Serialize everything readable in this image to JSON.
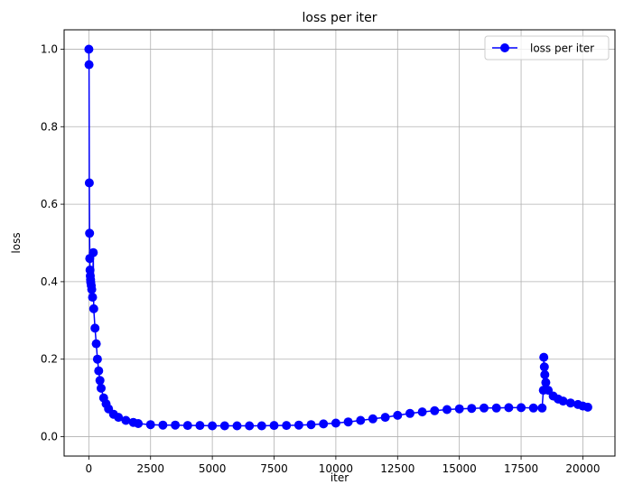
{
  "chart_data": {
    "type": "line",
    "title": "loss per iter",
    "xlabel": "iter",
    "ylabel": "loss",
    "xlim": [
      -1000,
      21300
    ],
    "ylim": [
      -0.05,
      1.05
    ],
    "xticks": [
      0,
      2500,
      5000,
      7500,
      10000,
      12500,
      15000,
      17500,
      20000
    ],
    "yticks": [
      0.0,
      0.2,
      0.4,
      0.6,
      0.8,
      1.0
    ],
    "xtick_labels": [
      "0",
      "2500",
      "5000",
      "7500",
      "10000",
      "12500",
      "15000",
      "17500",
      "20000"
    ],
    "ytick_labels": [
      "0.0",
      "0.2",
      "0.4",
      "0.6",
      "0.8",
      "1.0"
    ],
    "grid": true,
    "legend_position": "top-right",
    "series": [
      {
        "name": "loss per iter",
        "color": "#0000ff",
        "marker": "circle",
        "x": [
          0,
          10,
          20,
          30,
          40,
          50,
          60,
          70,
          80,
          100,
          120,
          150,
          180,
          200,
          250,
          300,
          350,
          400,
          450,
          500,
          600,
          700,
          800,
          1000,
          1200,
          1500,
          1800,
          2000,
          2500,
          3000,
          3500,
          4000,
          4500,
          5000,
          5500,
          6000,
          6500,
          7000,
          7500,
          8000,
          8500,
          9000,
          9500,
          10000,
          10500,
          11000,
          11500,
          12000,
          12500,
          13000,
          13500,
          14000,
          14500,
          15000,
          15500,
          16000,
          16500,
          17000,
          17500,
          18000,
          18350,
          18400,
          18420,
          18440,
          18460,
          18500,
          18600,
          18800,
          19000,
          19200,
          19500,
          19800,
          20000,
          20200
        ],
        "y": [
          1.0,
          0.96,
          0.655,
          0.525,
          0.46,
          0.43,
          0.415,
          0.405,
          0.398,
          0.39,
          0.38,
          0.36,
          0.475,
          0.33,
          0.28,
          0.24,
          0.2,
          0.17,
          0.145,
          0.125,
          0.1,
          0.085,
          0.072,
          0.058,
          0.05,
          0.042,
          0.037,
          0.034,
          0.031,
          0.03,
          0.03,
          0.029,
          0.029,
          0.028,
          0.028,
          0.028,
          0.028,
          0.028,
          0.029,
          0.029,
          0.03,
          0.031,
          0.033,
          0.035,
          0.038,
          0.042,
          0.046,
          0.05,
          0.055,
          0.06,
          0.064,
          0.067,
          0.07,
          0.072,
          0.073,
          0.074,
          0.074,
          0.075,
          0.075,
          0.074,
          0.074,
          0.12,
          0.205,
          0.18,
          0.16,
          0.14,
          0.12,
          0.105,
          0.097,
          0.092,
          0.087,
          0.083,
          0.079,
          0.076
        ]
      }
    ]
  }
}
